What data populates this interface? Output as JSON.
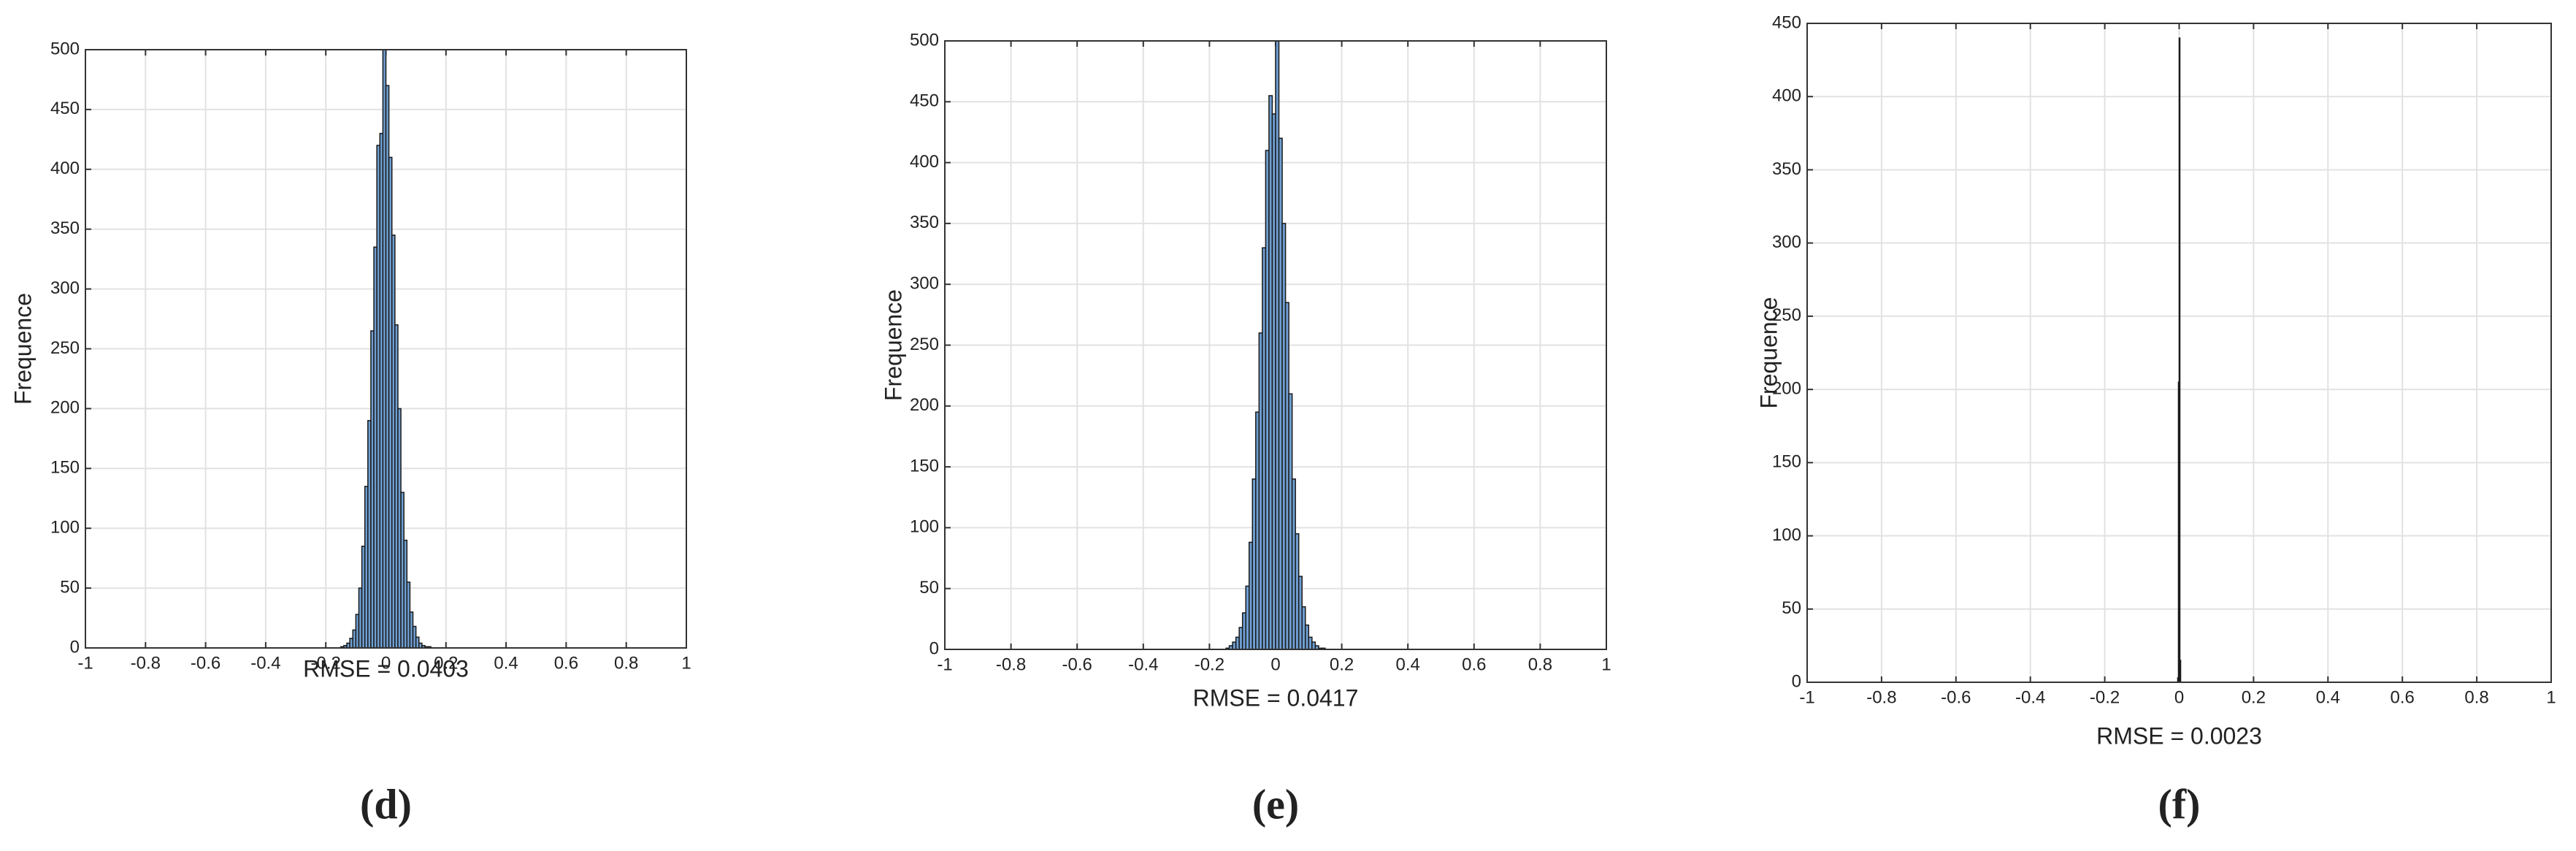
{
  "chart_data": [
    {
      "type": "histogram",
      "caption": "(d)",
      "xlabel": "RMSE = 0.0403",
      "ylabel": "Frequence",
      "bins": [
        -0.15,
        -0.14,
        -0.13,
        -0.12,
        -0.11,
        -0.1,
        -0.09,
        -0.08,
        -0.07,
        -0.06,
        -0.05,
        -0.04,
        -0.03,
        -0.02,
        -0.01,
        0,
        0.01,
        0.02,
        0.03,
        0.04,
        0.05,
        0.06,
        0.07,
        0.08,
        0.09,
        0.1,
        0.11,
        0.12,
        0.13,
        0.14,
        0.15
      ],
      "values": [
        1,
        2,
        4,
        8,
        15,
        28,
        50,
        85,
        135,
        190,
        265,
        335,
        420,
        430,
        500,
        470,
        410,
        345,
        270,
        200,
        130,
        90,
        55,
        30,
        18,
        9,
        4,
        2,
        1,
        1
      ],
      "color": "#6f9fd2",
      "xlim": [
        -1,
        1
      ],
      "ylim": [
        0,
        500
      ],
      "xticks": [
        -1,
        -0.8,
        -0.6,
        -0.4,
        -0.2,
        0,
        0.2,
        0.4,
        0.6,
        0.8,
        1
      ],
      "yticks": [
        0,
        50,
        100,
        150,
        200,
        250,
        300,
        350,
        400,
        450,
        500
      ],
      "grid": true
    },
    {
      "type": "histogram",
      "caption": "(e)",
      "xlabel": "RMSE = 0.0417",
      "ylabel": "Frequence",
      "bins": [
        -0.15,
        -0.14,
        -0.13,
        -0.12,
        -0.11,
        -0.1,
        -0.09,
        -0.08,
        -0.07,
        -0.06,
        -0.05,
        -0.04,
        -0.03,
        -0.02,
        -0.01,
        0,
        0.01,
        0.02,
        0.03,
        0.04,
        0.05,
        0.06,
        0.07,
        0.08,
        0.09,
        0.1,
        0.11,
        0.12,
        0.13,
        0.14,
        0.15
      ],
      "values": [
        1,
        3,
        6,
        10,
        18,
        30,
        52,
        88,
        140,
        195,
        260,
        330,
        410,
        455,
        440,
        500,
        420,
        350,
        285,
        210,
        140,
        95,
        60,
        35,
        20,
        10,
        6,
        3,
        1,
        1
      ],
      "color": "#6f9fd2",
      "xlim": [
        -1,
        1
      ],
      "ylim": [
        0,
        500
      ],
      "xticks": [
        -1,
        -0.8,
        -0.6,
        -0.4,
        -0.2,
        0,
        0.2,
        0.4,
        0.6,
        0.8,
        1
      ],
      "yticks": [
        0,
        50,
        100,
        150,
        200,
        250,
        300,
        350,
        400,
        450,
        500
      ],
      "grid": true
    },
    {
      "type": "histogram",
      "caption": "(f)",
      "xlabel": "RMSE = 0.0023",
      "ylabel": "Frequence",
      "bins": [
        -0.004,
        -0.002,
        0,
        0.002,
        0.004
      ],
      "values": [
        3,
        205,
        440,
        15
      ],
      "color": "#6f9fd2",
      "xlim": [
        -1,
        1
      ],
      "ylim": [
        0,
        450
      ],
      "xticks": [
        -1,
        -0.8,
        -0.6,
        -0.4,
        -0.2,
        0,
        0.2,
        0.4,
        0.6,
        0.8,
        1
      ],
      "yticks": [
        0,
        50,
        100,
        150,
        200,
        250,
        300,
        350,
        400,
        450
      ],
      "grid": true
    }
  ]
}
